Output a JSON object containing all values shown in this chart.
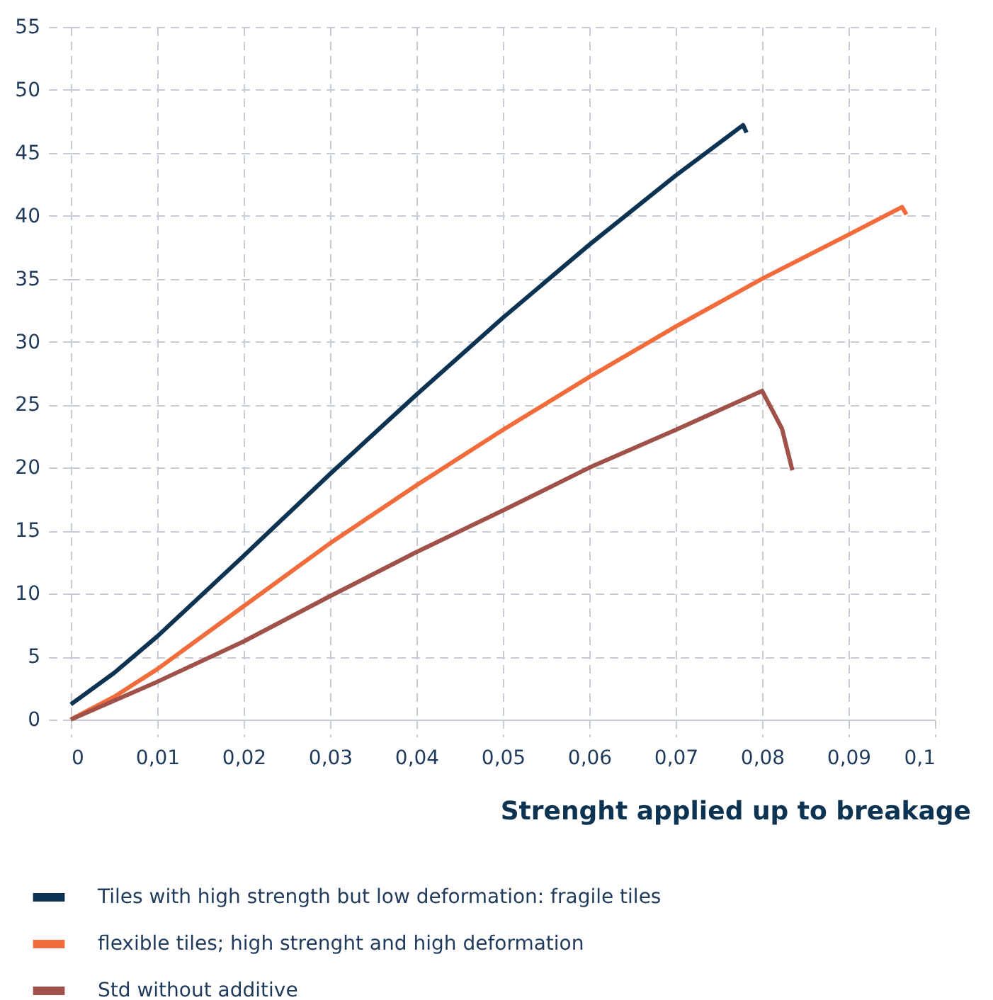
{
  "chart_data": {
    "type": "line",
    "xlabel": "Strenght applied up to breakage",
    "xlim": [
      0,
      0.1
    ],
    "xticks": [
      0,
      {
        "value": 0.01,
        "label": "0,01"
      },
      {
        "value": 0.02,
        "label": "0,02"
      },
      {
        "value": 0.03,
        "label": "0,03"
      },
      {
        "value": 0.04,
        "label": "0,04"
      },
      {
        "value": 0.05,
        "label": "0,05"
      },
      {
        "value": 0.06,
        "label": "0,06"
      },
      {
        "value": 0.07,
        "label": "0,07"
      },
      {
        "value": 0.08,
        "label": "0,08"
      },
      {
        "value": 0.09,
        "label": "0,09"
      },
      {
        "value": 0.1,
        "label": "0,1"
      }
    ],
    "ylim": [
      0,
      55
    ],
    "yticks": [
      0,
      5,
      10,
      15,
      20,
      25,
      30,
      35,
      40,
      45,
      50,
      55
    ],
    "grid": true,
    "legend": "bottom left",
    "line_style": "solid",
    "marker": "none",
    "series": [
      {
        "name": "Tiles with high strength but low deformation: fragile tiles",
        "color": "#0d3352",
        "x": [
          0,
          0.005,
          0.01,
          0.02,
          0.03,
          0.04,
          0.05,
          0.06,
          0.07,
          0.0778,
          0.0782
        ],
        "values": [
          1.2,
          3.7,
          6.6,
          13,
          19.5,
          25.8,
          31.9,
          37.7,
          43.2,
          47.2,
          46.6
        ]
      },
      {
        "name": "flexible tiles; high strenght and high deformation",
        "color": "#f26b3a",
        "x": [
          0,
          0.005,
          0.01,
          0.02,
          0.03,
          0.04,
          0.05,
          0.06,
          0.07,
          0.08,
          0.09,
          0.0962,
          0.0967
        ],
        "values": [
          0,
          1.8,
          4,
          9,
          14,
          18.6,
          23,
          27.2,
          31.2,
          35,
          38.5,
          40.7,
          40.1
        ]
      },
      {
        "name": "Std without additive",
        "color": "#a0524a",
        "x": [
          0,
          0.01,
          0.02,
          0.03,
          0.04,
          0.05,
          0.06,
          0.07,
          0.08,
          0.0823,
          0.0835
        ],
        "values": [
          0,
          3,
          6.2,
          9.8,
          13.3,
          16.6,
          20,
          23,
          26.1,
          23.1,
          19.8
        ]
      }
    ]
  }
}
